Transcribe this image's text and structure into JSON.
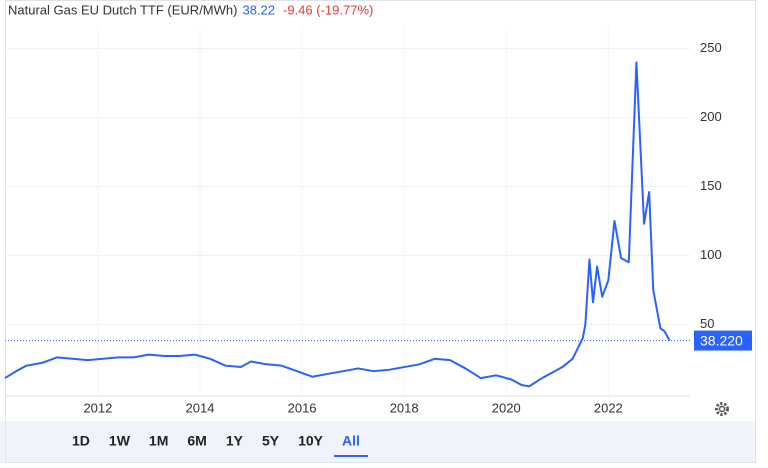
{
  "chart_data": {
    "type": "line",
    "title": "Natural Gas EU Dutch TTF (EUR/MWh)",
    "price": "38.22",
    "change": "-9.46 (-19.77%)",
    "last_price": {
      "value": 38.22,
      "label": "38.220"
    },
    "x": [
      2010.18,
      2010.4,
      2010.6,
      2010.9,
      2011.2,
      2011.5,
      2011.8,
      2012.1,
      2012.4,
      2012.7,
      2013.0,
      2013.3,
      2013.6,
      2013.9,
      2014.2,
      2014.5,
      2014.8,
      2015.0,
      2015.3,
      2015.6,
      2015.9,
      2016.2,
      2016.5,
      2016.8,
      2017.1,
      2017.4,
      2017.7,
      2018.0,
      2018.3,
      2018.6,
      2018.9,
      2019.2,
      2019.5,
      2019.8,
      2020.1,
      2020.3,
      2020.45,
      2020.7,
      2020.9,
      2021.1,
      2021.3,
      2021.5,
      2021.55,
      2021.63,
      2021.7,
      2021.78,
      2021.88,
      2022.0,
      2022.12,
      2022.25,
      2022.4,
      2022.55,
      2022.7,
      2022.8,
      2022.88,
      2023.02,
      2023.1,
      2023.2
    ],
    "series": [
      {
        "name": "TTF",
        "color": "#2962ff",
        "values": [
          11,
          16,
          20,
          22,
          26,
          25,
          24,
          25,
          26,
          26,
          28,
          27,
          27,
          28,
          25,
          20,
          19,
          23,
          21,
          20,
          16,
          12,
          14,
          16,
          18,
          16,
          17,
          19,
          21,
          25,
          24,
          18,
          11,
          13,
          10,
          6,
          5,
          11,
          15,
          19,
          25,
          40,
          50,
          97,
          66,
          92,
          70,
          82,
          125,
          98,
          95,
          240,
          123,
          146,
          75,
          47,
          45,
          38.22
        ]
      }
    ],
    "xlim": [
      2010.18,
      2023.6
    ],
    "xticks": [
      2012,
      2014,
      2016,
      2018,
      2020,
      2022
    ],
    "ylim": [
      -2,
      265
    ],
    "yticks": [
      50,
      100,
      150,
      200,
      250
    ],
    "grid": true,
    "ranges": [
      "1D",
      "1W",
      "1M",
      "6M",
      "1Y",
      "5Y",
      "10Y",
      "All"
    ],
    "active_range": 7
  }
}
